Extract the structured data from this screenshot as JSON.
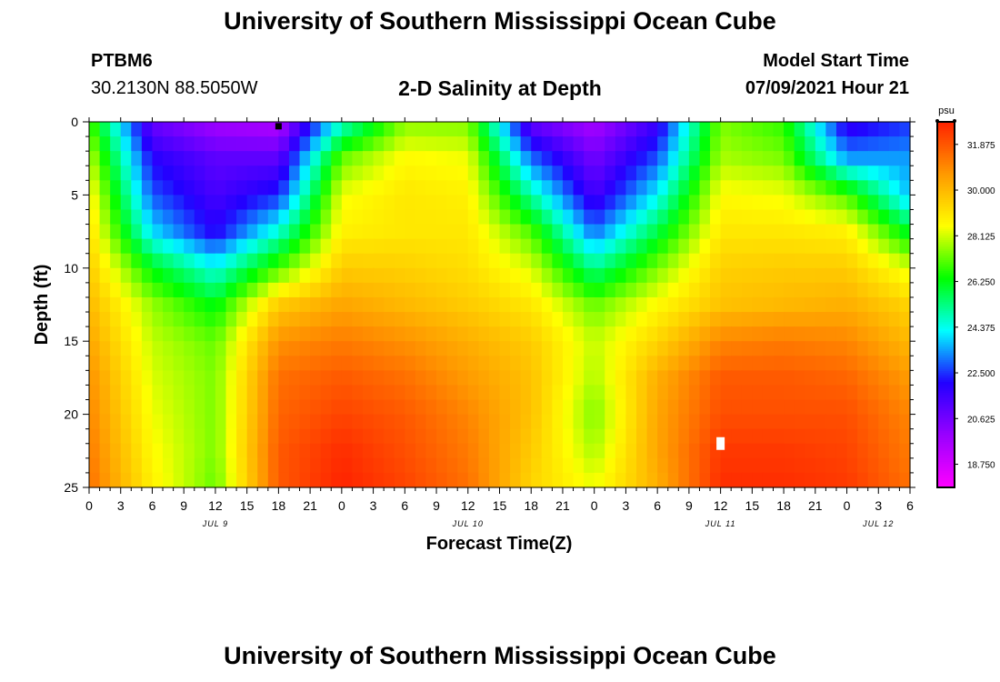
{
  "header": {
    "title": "University of Southern Mississippi Ocean Cube",
    "station_id": "PTBM6",
    "station_coords": "30.2130N  88.5050W",
    "plot_title": "2-D Salinity at Depth",
    "start_label": "Model Start Time",
    "start_value": "07/09/2021 Hour 21"
  },
  "footer": {
    "title": "University of Southern Mississippi Ocean Cube"
  },
  "chart_data": {
    "type": "heatmap",
    "xlabel": "Forecast Time(Z)",
    "ylabel": "Depth (ft)",
    "colorbar_unit": "psu",
    "xlim": [
      0,
      78
    ],
    "ylim": [
      25,
      0
    ],
    "x_ticks": [
      0,
      3,
      6,
      9,
      12,
      15,
      18,
      21,
      24,
      27,
      30,
      33,
      36,
      39,
      42,
      45,
      48,
      51,
      54,
      57,
      60,
      63,
      66,
      69,
      72,
      75,
      78
    ],
    "x_tick_labels": [
      "0",
      "3",
      "6",
      "9",
      "12",
      "15",
      "18",
      "21",
      "0",
      "3",
      "6",
      "9",
      "12",
      "15",
      "18",
      "21",
      "0",
      "3",
      "6",
      "9",
      "12",
      "15",
      "18",
      "21",
      "0",
      "3",
      "6"
    ],
    "y_ticks": [
      0,
      5,
      10,
      15,
      20,
      25
    ],
    "y_tick_labels": [
      "0",
      "5",
      "10",
      "15",
      "20",
      "25"
    ],
    "date_labels": [
      {
        "x": 12,
        "text": "JUL 9"
      },
      {
        "x": 36,
        "text": "JUL 10"
      },
      {
        "x": 60,
        "text": "JUL 11"
      },
      {
        "x": 75,
        "text": "JUL 12"
      }
    ],
    "colorbar": {
      "min": 17.8,
      "max": 32.8,
      "ticks": [
        18.75,
        20.625,
        22.5,
        24.375,
        26.25,
        28.125,
        30.0,
        31.875
      ],
      "tick_labels": [
        "18.750",
        "20.625",
        "22.500",
        "24.375",
        "26.250",
        "28.125",
        "30.000",
        "31.875"
      ],
      "colors": [
        "#ff00ff",
        "#9900ff",
        "#2200ff",
        "#00ffff",
        "#00ff00",
        "#ffff00",
        "#ff9900",
        "#ff2200"
      ]
    },
    "depths": [
      0,
      2.5,
      5,
      7.5,
      10,
      12.5,
      15,
      17.5,
      20,
      22.5,
      25
    ],
    "times": [
      0,
      6,
      12,
      18,
      24,
      30,
      36,
      42,
      48,
      54,
      60,
      66,
      72,
      78
    ],
    "salinity": [
      [
        27.0,
        20.8,
        19.7,
        19.4,
        24.5,
        27.5,
        27.4,
        20.8,
        19.6,
        21.6,
        27.4,
        26.7,
        21.6,
        22.5
      ],
      [
        28.0,
        22.0,
        21.0,
        21.0,
        27.2,
        28.6,
        28.4,
        23.0,
        20.6,
        22.8,
        27.8,
        27.4,
        23.4,
        23.4
      ],
      [
        28.8,
        22.8,
        21.4,
        22.4,
        28.4,
        29.0,
        28.8,
        25.0,
        21.4,
        24.2,
        28.6,
        28.4,
        27.0,
        23.6
      ],
      [
        29.2,
        24.0,
        22.0,
        24.6,
        28.8,
        29.0,
        29.0,
        27.0,
        23.0,
        25.8,
        29.0,
        29.0,
        28.8,
        26.0
      ],
      [
        29.6,
        26.2,
        24.4,
        27.0,
        29.6,
        29.5,
        29.2,
        28.2,
        25.2,
        27.4,
        29.5,
        29.6,
        29.6,
        28.2
      ],
      [
        30.0,
        27.6,
        26.2,
        29.6,
        30.4,
        30.0,
        29.6,
        29.0,
        27.2,
        28.6,
        29.8,
        30.0,
        30.2,
        29.4
      ],
      [
        30.4,
        28.0,
        27.2,
        30.8,
        31.2,
        30.8,
        30.2,
        29.6,
        28.0,
        29.4,
        31.0,
        31.2,
        31.0,
        30.0
      ],
      [
        30.8,
        28.2,
        27.4,
        31.4,
        31.8,
        31.4,
        30.6,
        29.8,
        27.8,
        30.2,
        31.8,
        31.8,
        31.6,
        30.6
      ],
      [
        31.0,
        28.4,
        27.4,
        31.6,
        32.2,
        31.8,
        31.0,
        29.8,
        27.4,
        30.4,
        32.0,
        32.0,
        32.0,
        31.0
      ],
      [
        31.2,
        28.6,
        27.4,
        31.8,
        32.6,
        32.0,
        31.2,
        29.6,
        27.8,
        30.4,
        32.4,
        32.4,
        32.2,
        31.2
      ],
      [
        31.4,
        28.8,
        27.2,
        31.8,
        32.8,
        32.2,
        31.4,
        29.4,
        28.4,
        30.2,
        32.6,
        32.6,
        32.4,
        31.4
      ]
    ],
    "markers": [
      {
        "x": 18,
        "y": 0.3,
        "color": "#000000"
      },
      {
        "x": 60,
        "y": 22.0,
        "color": "#ffffff"
      }
    ]
  }
}
